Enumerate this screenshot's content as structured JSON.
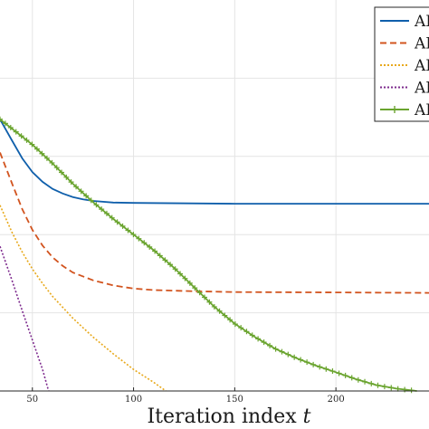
{
  "chart_data": {
    "type": "line",
    "xlabel": "Iteration index",
    "xlabel_var": "t",
    "ylabel": "",
    "x_ticks": [
      50,
      100,
      150,
      200
    ],
    "xlim": [
      34,
      246
    ],
    "ylim": [
      0,
      10
    ],
    "grid": true,
    "legend_placement": "top-right",
    "legend_partial_labels": [
      "AI",
      "AI",
      "AI",
      "AI",
      "AI"
    ],
    "series": [
      {
        "color": "#0f5fab",
        "style": "solid",
        "marker": "none",
        "points": [
          [
            34,
            6.95
          ],
          [
            40,
            6.4
          ],
          [
            45,
            5.95
          ],
          [
            50,
            5.6
          ],
          [
            55,
            5.35
          ],
          [
            60,
            5.17
          ],
          [
            65,
            5.05
          ],
          [
            70,
            4.96
          ],
          [
            75,
            4.9
          ],
          [
            80,
            4.86
          ],
          [
            90,
            4.82
          ],
          [
            100,
            4.81
          ],
          [
            150,
            4.79
          ],
          [
            200,
            4.79
          ],
          [
            246,
            4.79
          ]
        ]
      },
      {
        "color": "#d2541f",
        "style": "dashed",
        "marker": "none",
        "points": [
          [
            34,
            6.1
          ],
          [
            40,
            5.3
          ],
          [
            45,
            4.65
          ],
          [
            50,
            4.12
          ],
          [
            55,
            3.72
          ],
          [
            60,
            3.42
          ],
          [
            65,
            3.2
          ],
          [
            70,
            3.03
          ],
          [
            80,
            2.83
          ],
          [
            90,
            2.7
          ],
          [
            100,
            2.62
          ],
          [
            110,
            2.58
          ],
          [
            130,
            2.55
          ],
          [
            150,
            2.53
          ],
          [
            200,
            2.52
          ],
          [
            246,
            2.51
          ]
        ]
      },
      {
        "color": "#e8a91c",
        "style": "dotted",
        "marker": "none",
        "points": [
          [
            34,
            4.75
          ],
          [
            40,
            4.05
          ],
          [
            45,
            3.55
          ],
          [
            50,
            3.12
          ],
          [
            55,
            2.75
          ],
          [
            60,
            2.42
          ],
          [
            70,
            1.86
          ],
          [
            80,
            1.38
          ],
          [
            90,
            0.95
          ],
          [
            100,
            0.55
          ],
          [
            110,
            0.22
          ],
          [
            116,
            0.0
          ]
        ]
      },
      {
        "color": "#7e2b8e",
        "style": "dotted",
        "marker": "none",
        "points": [
          [
            34,
            3.7
          ],
          [
            40,
            2.82
          ],
          [
            45,
            2.05
          ],
          [
            50,
            1.3
          ],
          [
            55,
            0.55
          ],
          [
            58,
            0.0
          ]
        ]
      },
      {
        "color": "#6aa42f",
        "style": "solid",
        "marker": "plus",
        "points": [
          [
            34,
            6.95
          ],
          [
            50,
            6.3
          ],
          [
            60,
            5.82
          ],
          [
            70,
            5.3
          ],
          [
            80,
            4.83
          ],
          [
            90,
            4.4
          ],
          [
            100,
            4.0
          ],
          [
            110,
            3.6
          ],
          [
            120,
            3.15
          ],
          [
            130,
            2.65
          ],
          [
            140,
            2.15
          ],
          [
            150,
            1.72
          ],
          [
            160,
            1.38
          ],
          [
            170,
            1.08
          ],
          [
            180,
            0.85
          ],
          [
            190,
            0.65
          ],
          [
            200,
            0.48
          ],
          [
            210,
            0.3
          ],
          [
            220,
            0.15
          ],
          [
            230,
            0.06
          ],
          [
            240,
            0.0
          ]
        ]
      }
    ]
  }
}
